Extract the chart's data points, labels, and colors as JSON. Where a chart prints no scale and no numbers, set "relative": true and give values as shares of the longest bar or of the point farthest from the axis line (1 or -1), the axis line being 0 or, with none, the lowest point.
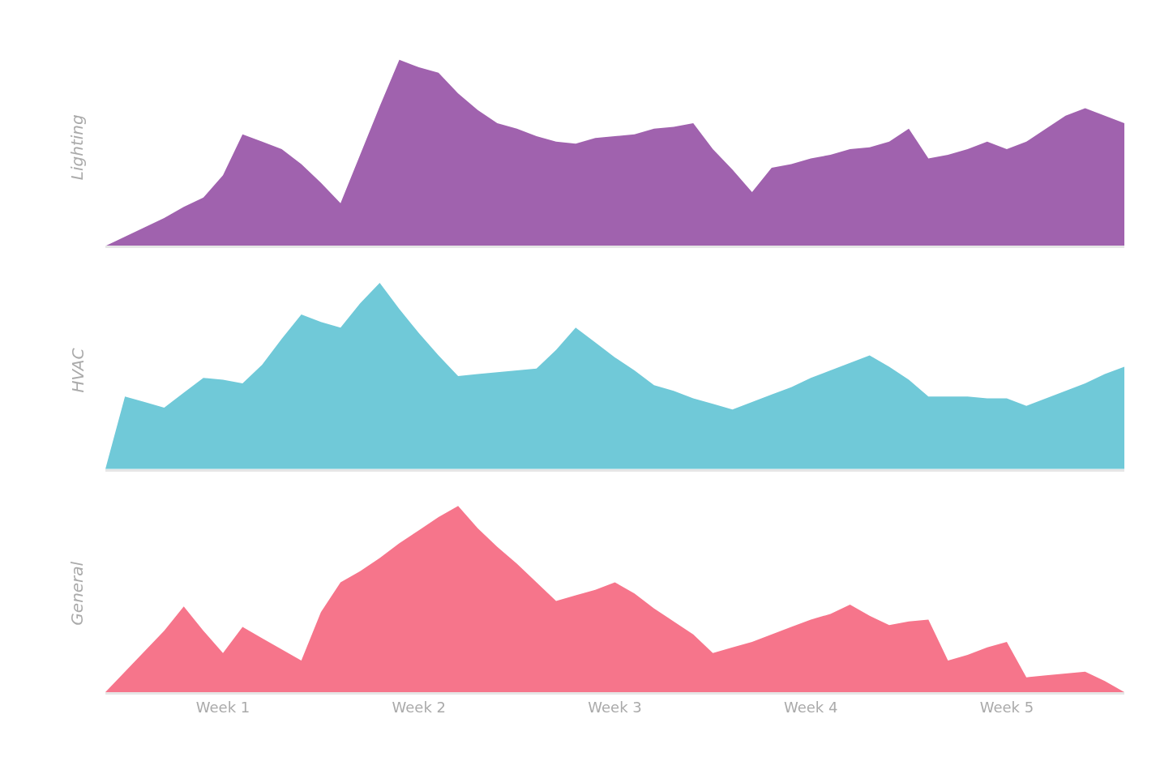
{
  "chart_data": [
    {
      "type": "area",
      "relative": true,
      "categories": [
        null,
        null,
        null,
        null,
        null,
        null,
        null,
        null,
        null,
        null,
        null,
        null,
        null,
        null,
        null,
        null,
        null,
        null,
        null,
        null,
        null,
        null,
        null,
        null,
        null,
        null,
        null,
        null,
        null,
        null,
        null,
        null,
        null,
        null,
        null,
        null,
        null,
        null,
        null,
        null,
        null,
        null,
        null,
        null,
        null,
        null,
        null,
        null,
        null,
        null,
        null,
        null,
        null
      ],
      "series": [
        {
          "name": "Lighting",
          "color": "#a062ae",
          "values": [
            0,
            0.05,
            0.1,
            0.15,
            0.21,
            0.26,
            0.38,
            0.6,
            0.56,
            0.52,
            0.44,
            0.34,
            0.23,
            0.49,
            0.75,
            1,
            0.96,
            0.93,
            0.82,
            0.73,
            0.66,
            0.63,
            0.59,
            0.56,
            0.55,
            0.58,
            0.59,
            0.6,
            0.63,
            0.64,
            0.66,
            0.52,
            0.41,
            0.29,
            0.42,
            0.44,
            0.47,
            0.49,
            0.52,
            0.53,
            0.56,
            0.63,
            0.47,
            0.49,
            0.52,
            0.56,
            0.52,
            0.56,
            0.63,
            0.7,
            0.74,
            0.7,
            0.66
          ]
        }
      ]
    },
    {
      "type": "area",
      "relative": true,
      "categories": [
        null,
        null,
        null,
        null,
        null,
        null,
        null,
        null,
        null,
        null,
        null,
        null,
        null,
        null,
        null,
        null,
        null,
        null,
        null,
        null,
        null,
        null,
        null,
        null,
        null,
        null,
        null,
        null,
        null,
        null,
        null,
        null,
        null,
        null,
        null,
        null,
        null,
        null,
        null,
        null,
        null,
        null,
        null,
        null,
        null,
        null,
        null,
        null,
        null,
        null,
        null,
        null,
        null
      ],
      "series": [
        {
          "name": "HVAC",
          "color": "#70c9d8",
          "values": [
            0,
            0.39,
            0.36,
            0.33,
            0.41,
            0.49,
            0.48,
            0.46,
            0.56,
            0.7,
            0.83,
            0.79,
            0.76,
            0.89,
            1,
            0.86,
            0.73,
            0.61,
            0.5,
            0.51,
            0.52,
            0.53,
            0.54,
            0.64,
            0.76,
            0.68,
            0.6,
            0.53,
            0.45,
            0.42,
            0.38,
            0.35,
            0.32,
            0.36,
            0.4,
            0.44,
            0.49,
            0.53,
            0.57,
            0.61,
            0.55,
            0.48,
            0.39,
            0.39,
            0.39,
            0.38,
            0.38,
            0.34,
            0.38,
            0.42,
            0.46,
            0.51,
            0.55
          ]
        }
      ]
    },
    {
      "type": "area",
      "relative": true,
      "categories": [
        null,
        null,
        null,
        null,
        null,
        null,
        "Week 1",
        null,
        null,
        null,
        null,
        null,
        null,
        null,
        null,
        null,
        "Week 2",
        null,
        null,
        null,
        null,
        null,
        null,
        null,
        null,
        null,
        "Week 3",
        null,
        null,
        null,
        null,
        null,
        null,
        null,
        null,
        null,
        "Week 4",
        null,
        null,
        null,
        null,
        null,
        null,
        null,
        null,
        null,
        "Week 5",
        null,
        null,
        null,
        null,
        null,
        null
      ],
      "series": [
        {
          "name": "General",
          "color": "#f6758b",
          "values": [
            0,
            0.11,
            0.22,
            0.33,
            0.46,
            0.33,
            0.21,
            0.35,
            0.29,
            0.23,
            0.17,
            0.43,
            0.59,
            0.65,
            0.72,
            0.8,
            0.87,
            0.94,
            1,
            0.88,
            0.78,
            0.69,
            0.59,
            0.49,
            0.52,
            0.55,
            0.59,
            0.53,
            0.45,
            0.38,
            0.31,
            0.21,
            0.24,
            0.27,
            0.31,
            0.35,
            0.39,
            0.42,
            0.47,
            0.41,
            0.36,
            0.38,
            0.39,
            0.17,
            0.2,
            0.24,
            0.27,
            0.08,
            0.09,
            0.1,
            0.11,
            0.06,
            0
          ]
        }
      ]
    }
  ]
}
